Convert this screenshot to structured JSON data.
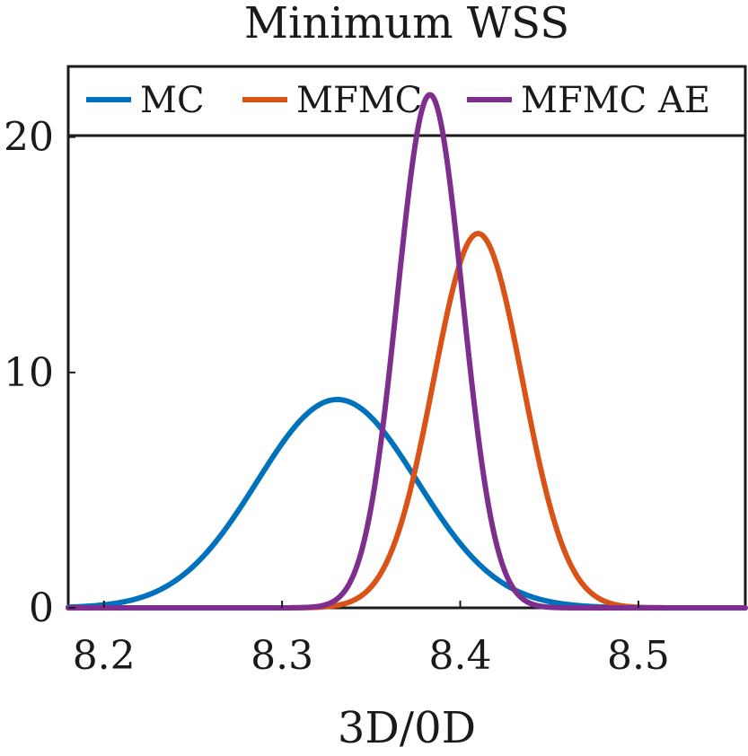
{
  "chart_data": {
    "type": "line",
    "title": "Minimum WSS",
    "xlabel": "3D/0D",
    "ylabel": "",
    "xlim": [
      8.18,
      8.56
    ],
    "ylim": [
      0,
      23
    ],
    "xticks": [
      8.2,
      8.3,
      8.4,
      8.5
    ],
    "xtick_labels": [
      "8.2",
      "8.3",
      "8.4",
      "8.5"
    ],
    "yticks": [
      0,
      10,
      20
    ],
    "ytick_labels": [
      "0",
      "10",
      "20"
    ],
    "grid": false,
    "legend_position": "top",
    "series": [
      {
        "name": "MC",
        "color": "#0072BD",
        "distribution": "normal",
        "mean": 8.331,
        "std": 0.045,
        "peak": 8.85
      },
      {
        "name": "MFMC",
        "color": "#D95319",
        "distribution": "normal",
        "mean": 8.41,
        "std": 0.025,
        "peak": 15.9
      },
      {
        "name": "MFMC AE",
        "color": "#7E2F8E",
        "distribution": "normal",
        "mean": 8.383,
        "std": 0.0183,
        "peak": 21.8
      }
    ]
  }
}
